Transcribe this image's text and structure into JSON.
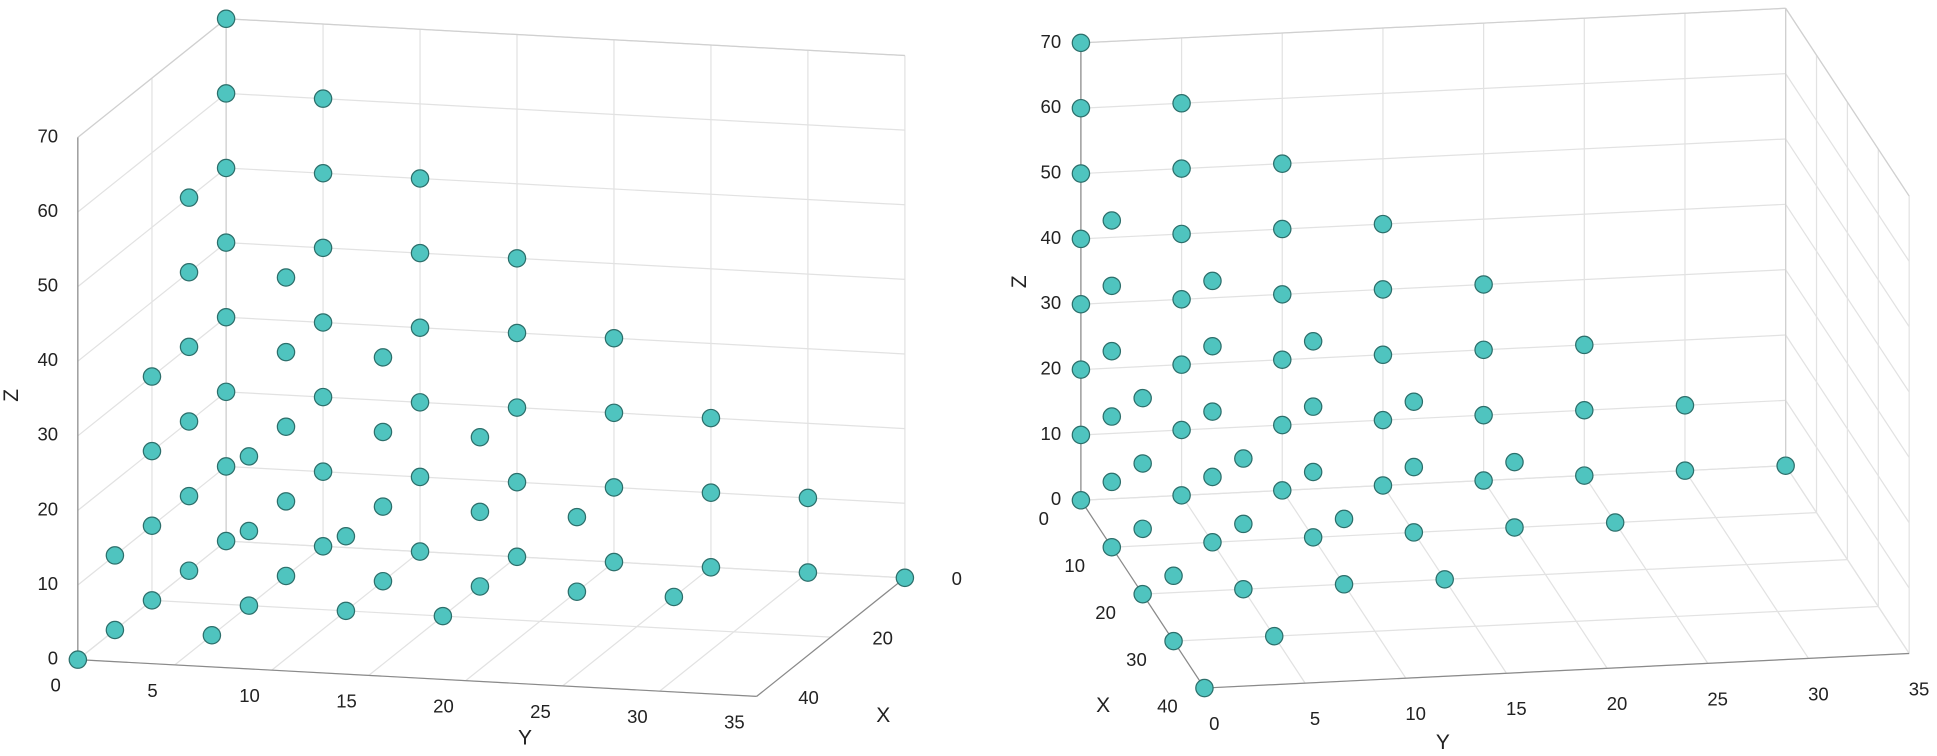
{
  "chart_data": [
    {
      "type": "scatter3d",
      "xlabel": "X",
      "ylabel": "Y",
      "zlabel": "Z",
      "color": "#4fc4bf",
      "xlim": [
        0,
        40
      ],
      "ylim": [
        0,
        35
      ],
      "zlim": [
        0,
        70
      ],
      "xticks": [
        0,
        20,
        40
      ],
      "yticks": [
        0,
        5,
        10,
        15,
        20,
        25,
        30,
        35
      ],
      "zticks": [
        0,
        10,
        20,
        30,
        40,
        50,
        60,
        70
      ],
      "grid": true,
      "x": [
        0,
        0,
        0,
        0,
        0,
        0,
        0,
        0,
        0,
        0,
        0,
        0,
        0,
        0,
        0,
        0,
        0,
        0,
        0,
        0,
        0,
        0,
        0,
        0,
        0,
        0,
        0,
        0,
        0,
        0,
        0,
        0,
        0,
        0,
        0,
        0,
        10,
        10,
        10,
        10,
        10,
        10,
        10,
        10,
        10,
        10,
        10,
        10,
        10,
        10,
        10,
        10,
        10,
        10,
        10,
        10,
        10,
        20,
        20,
        20,
        20,
        20,
        20,
        20,
        20,
        20,
        20,
        30,
        30,
        30,
        40
      ],
      "y": [
        0,
        0,
        0,
        0,
        0,
        0,
        0,
        0,
        5,
        5,
        5,
        5,
        5,
        5,
        5,
        10,
        10,
        10,
        10,
        10,
        10,
        15,
        15,
        15,
        15,
        15,
        20,
        20,
        20,
        20,
        25,
        25,
        25,
        30,
        30,
        35,
        0,
        0,
        0,
        0,
        0,
        0,
        5,
        5,
        5,
        5,
        5,
        10,
        10,
        10,
        10,
        15,
        15,
        15,
        20,
        20,
        25,
        0,
        0,
        0,
        0,
        5,
        5,
        5,
        10,
        10,
        15,
        0,
        0,
        5,
        0
      ],
      "z": [
        0,
        10,
        20,
        30,
        40,
        50,
        60,
        70,
        0,
        10,
        20,
        30,
        40,
        50,
        60,
        0,
        10,
        20,
        30,
        40,
        50,
        0,
        10,
        20,
        30,
        40,
        0,
        10,
        20,
        30,
        0,
        10,
        20,
        0,
        10,
        0,
        0,
        10,
        20,
        30,
        40,
        50,
        0,
        10,
        20,
        30,
        40,
        0,
        10,
        20,
        30,
        0,
        10,
        20,
        0,
        10,
        0,
        0,
        10,
        20,
        30,
        0,
        10,
        20,
        0,
        10,
        0,
        0,
        10,
        0,
        0
      ]
    },
    {
      "type": "scatter3d",
      "xlabel": "X",
      "ylabel": "Y",
      "zlabel": "Z",
      "color": "#4fc4bf",
      "xlim": [
        0,
        40
      ],
      "ylim": [
        0,
        35
      ],
      "zlim": [
        0,
        70
      ],
      "xticks": [
        0,
        10,
        20,
        30,
        40
      ],
      "yticks": [
        0,
        5,
        10,
        15,
        20,
        25,
        30,
        35
      ],
      "zticks": [
        0,
        10,
        20,
        30,
        40,
        50,
        60,
        70
      ],
      "grid": true,
      "x": [
        0,
        0,
        0,
        0,
        0,
        0,
        0,
        0,
        0,
        0,
        0,
        0,
        0,
        0,
        0,
        0,
        0,
        0,
        0,
        0,
        0,
        0,
        0,
        0,
        0,
        0,
        0,
        0,
        0,
        0,
        0,
        0,
        0,
        0,
        0,
        0,
        10,
        10,
        10,
        10,
        10,
        10,
        10,
        10,
        10,
        10,
        10,
        10,
        10,
        10,
        10,
        10,
        10,
        10,
        10,
        10,
        10,
        20,
        20,
        20,
        20,
        20,
        20,
        20,
        20,
        20,
        20,
        30,
        30,
        30,
        40
      ],
      "y": [
        0,
        0,
        0,
        0,
        0,
        0,
        0,
        0,
        5,
        5,
        5,
        5,
        5,
        5,
        5,
        10,
        10,
        10,
        10,
        10,
        10,
        15,
        15,
        15,
        15,
        15,
        20,
        20,
        20,
        20,
        25,
        25,
        25,
        30,
        30,
        35,
        0,
        0,
        0,
        0,
        0,
        0,
        5,
        5,
        5,
        5,
        5,
        10,
        10,
        10,
        10,
        15,
        15,
        15,
        20,
        20,
        25,
        0,
        0,
        0,
        0,
        5,
        5,
        5,
        10,
        10,
        15,
        0,
        0,
        5,
        0
      ],
      "z": [
        0,
        10,
        20,
        30,
        40,
        50,
        60,
        70,
        0,
        10,
        20,
        30,
        40,
        50,
        60,
        0,
        10,
        20,
        30,
        40,
        50,
        0,
        10,
        20,
        30,
        40,
        0,
        10,
        20,
        30,
        0,
        10,
        20,
        0,
        10,
        0,
        0,
        10,
        20,
        30,
        40,
        50,
        0,
        10,
        20,
        30,
        40,
        0,
        10,
        20,
        30,
        0,
        10,
        20,
        0,
        10,
        0,
        0,
        10,
        20,
        30,
        0,
        10,
        20,
        0,
        10,
        0,
        0,
        10,
        0,
        0
      ]
    }
  ]
}
